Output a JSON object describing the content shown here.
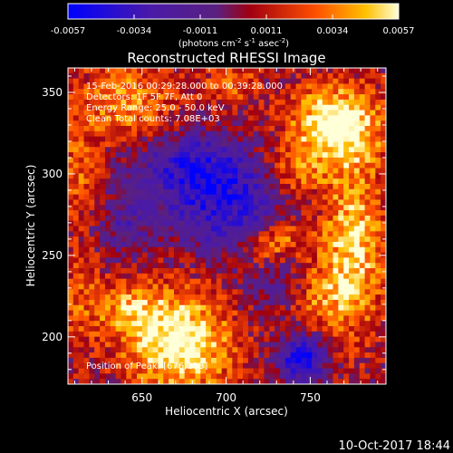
{
  "chart_data": {
    "type": "heatmap",
    "title": "Reconstructed RHESSI Image",
    "xlabel": "Heliocentric X (arcsec)",
    "ylabel": "Heliocentric Y (arcsec)",
    "xlim": [
      606,
      795
    ],
    "ylim": [
      171,
      365
    ],
    "x_ticks": [
      650,
      700,
      750
    ],
    "y_ticks": [
      200,
      250,
      300,
      350
    ],
    "colorbar": {
      "range": [
        -0.0057,
        0.0057
      ],
      "ticks": [
        "-0.0057",
        "-0.0034",
        "-0.0011",
        "0.0011",
        "0.0034",
        "0.0057"
      ],
      "units_main": "(photons cm",
      "units_exp1": "-2",
      "units_mid": " s",
      "units_exp2": "-1",
      "units_end": " asec",
      "units_exp3": "-2",
      "units_close": ")"
    },
    "annotations": [
      "15-Feb-2016 00:29:28.000 to 00:39:28.000",
      "Detectors: 1F 5F 7F, Att 0",
      "Energy Range: 25.0 - 50.0 keV",
      "Clean    Total counts: 7.08E+03"
    ],
    "peak_label": "Position of Peak: [676,193]",
    "sources": [
      {
        "x": 672,
        "y": 196,
        "amp": 0.0062,
        "sx": 22,
        "sy": 22
      },
      {
        "x": 642,
        "y": 217,
        "amp": 0.003,
        "sx": 14,
        "sy": 12
      },
      {
        "x": 765,
        "y": 330,
        "amp": 0.0062,
        "sx": 20,
        "sy": 17
      },
      {
        "x": 640,
        "y": 345,
        "amp": 0.0035,
        "sx": 22,
        "sy": 18
      },
      {
        "x": 703,
        "y": 355,
        "amp": 0.0025,
        "sx": 12,
        "sy": 10
      },
      {
        "x": 775,
        "y": 255,
        "amp": 0.0048,
        "sx": 14,
        "sy": 38
      },
      {
        "x": 750,
        "y": 225,
        "amp": 0.0032,
        "sx": 14,
        "sy": 14
      },
      {
        "x": 735,
        "y": 262,
        "amp": 0.003,
        "sx": 9,
        "sy": 10
      },
      {
        "x": 720,
        "y": 255,
        "amp": 0.0026,
        "sx": 8,
        "sy": 8
      },
      {
        "x": 740,
        "y": 300,
        "amp": 0.0025,
        "sx": 12,
        "sy": 10
      },
      {
        "x": 612,
        "y": 225,
        "amp": 0.002,
        "sx": 10,
        "sy": 25
      },
      {
        "x": 612,
        "y": 300,
        "amp": 0.0025,
        "sx": 9,
        "sy": 20
      },
      {
        "x": 700,
        "y": 280,
        "amp": -0.0042,
        "sx": 24,
        "sy": 18
      },
      {
        "x": 680,
        "y": 305,
        "amp": -0.004,
        "sx": 22,
        "sy": 14
      },
      {
        "x": 735,
        "y": 230,
        "amp": -0.0028,
        "sx": 14,
        "sy": 12
      },
      {
        "x": 745,
        "y": 187,
        "amp": -0.0055,
        "sx": 10,
        "sy": 10
      },
      {
        "x": 640,
        "y": 270,
        "amp": -0.002,
        "sx": 12,
        "sy": 14
      }
    ]
  },
  "footer": {
    "timestamp": "10-Oct-2017 18:44"
  }
}
